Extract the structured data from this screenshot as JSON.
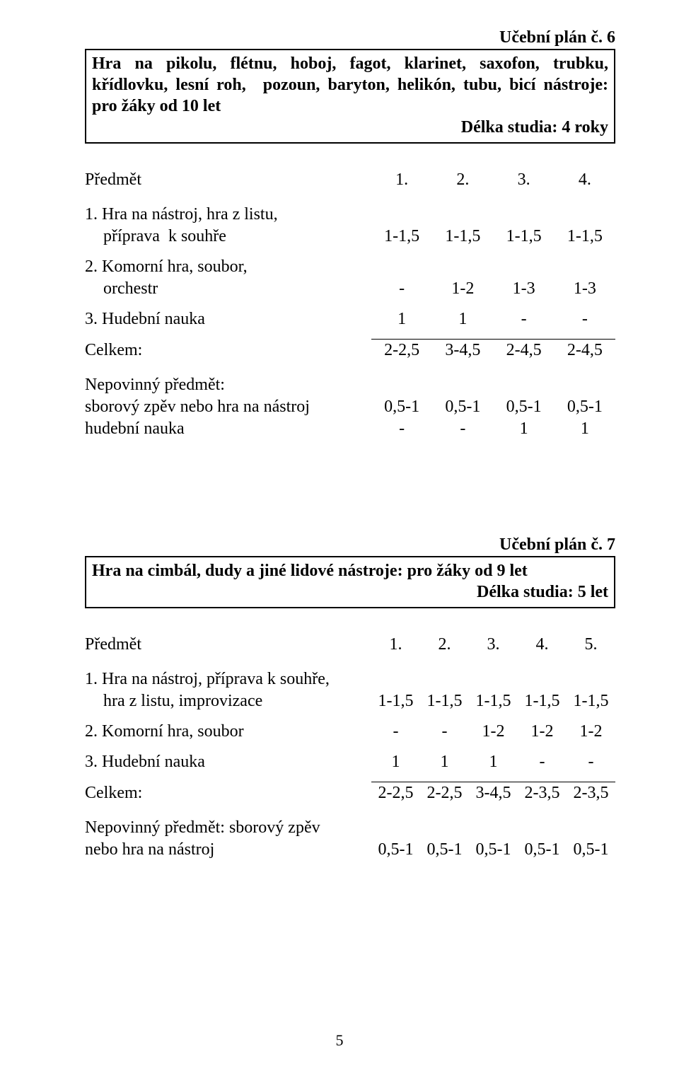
{
  "page_number": "5",
  "plan6": {
    "header_num": "Učební plán č. 6",
    "title": "Hra na pikolu, flétnu, hoboj, fagot, klarinet, saxofon, trubku, křídlovku, lesní roh, pozoun, baryton, helikón, tubu, bicí nástroje: pro žáky od 10 let",
    "duration": "Délka studia: 4 roky",
    "header": {
      "subject": "Předmět",
      "c1": "1.",
      "c2": "2.",
      "c3": "3.",
      "c4": "4."
    },
    "r1": {
      "line1": "1. Hra na nástroj, hra z listu,",
      "line2": "příprava  k souhře",
      "c1": "1-1,5",
      "c2": "1-1,5",
      "c3": "1-1,5",
      "c4": "1-1,5"
    },
    "r2": {
      "line1": "2. Komorní hra, soubor,",
      "line2": "orchestr",
      "c1": "-",
      "c2": "1-2",
      "c3": "1-3",
      "c4": "1-3"
    },
    "r3": {
      "label": "3. Hudební nauka",
      "c1": "1",
      "c2": "1",
      "c3": "-",
      "c4": "-"
    },
    "total": {
      "label": "Celkem:",
      "c1": "2-2,5",
      "c2": "3-4,5",
      "c3": "2-4,5",
      "c4": "2-4,5"
    },
    "opt": {
      "head": "Nepovinný předmět:",
      "l1": "sborový zpěv nebo hra na nástroj",
      "l1c": {
        "c1": "0,5-1",
        "c2": "0,5-1",
        "c3": "0,5-1",
        "c4": "0,5-1"
      },
      "l2": "hudební nauka",
      "l2c": {
        "c1": "-",
        "c2": "-",
        "c3": "1",
        "c4": "1"
      }
    }
  },
  "plan7": {
    "header_num": "Učební plán č. 7",
    "title": "Hra na cimbál, dudy a jiné lidové nástroje: pro žáky od 9 let",
    "duration": "Délka studia: 5 let",
    "header": {
      "subject": "Předmět",
      "c1": "1.",
      "c2": "2.",
      "c3": "3.",
      "c4": "4.",
      "c5": "5."
    },
    "r1": {
      "line1": "1. Hra na nástroj, příprava k souhře,",
      "line2": "hra z listu, improvizace",
      "c1": "1-1,5",
      "c2": "1-1,5",
      "c3": "1-1,5",
      "c4": "1-1,5",
      "c5": "1-1,5"
    },
    "r2": {
      "label": "2. Komorní hra, soubor",
      "c1": "-",
      "c2": "-",
      "c3": "1-2",
      "c4": "1-2",
      "c5": "1-2"
    },
    "r3": {
      "label": "3. Hudební nauka",
      "c1": "1",
      "c2": "1",
      "c3": "1",
      "c4": "-",
      "c5": "-"
    },
    "total": {
      "label": "Celkem:",
      "c1": "2-2,5",
      "c2": "2-2,5",
      "c3": "3-4,5",
      "c4": "2-3,5",
      "c5": "2-3,5"
    },
    "opt": {
      "l1": "Nepovinný předmět: sborový zpěv",
      "l2": "nebo hra na nástroj",
      "c": {
        "c1": "0,5-1",
        "c2": "0,5-1",
        "c3": "0,5-1",
        "c4": "0,5-1",
        "c5": "0,5-1"
      }
    }
  }
}
